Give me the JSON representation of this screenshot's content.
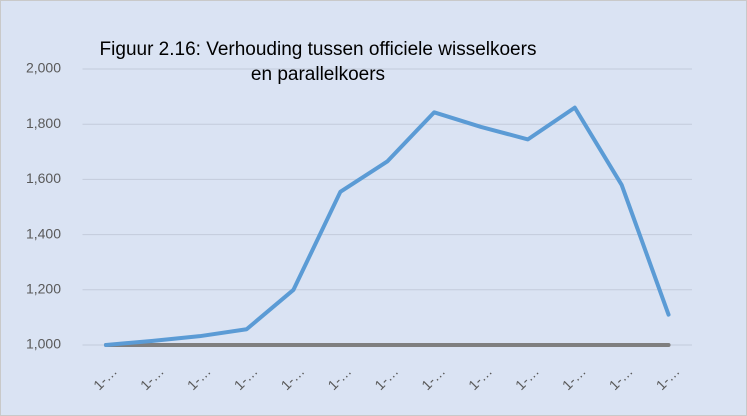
{
  "chart_data": {
    "type": "line",
    "title": "Figuur 2.16: Verhouding tussen officiele wisselkoers en parallelkoers",
    "categories": [
      "1-…",
      "1-…",
      "1-…",
      "1-…",
      "1-…",
      "1-…",
      "1-…",
      "1-…",
      "1-…",
      "1-…",
      "1-…",
      "1-…",
      "1-…"
    ],
    "series": [
      {
        "color": "#5b9bd5",
        "values": [
          1000,
          1015,
          1032,
          1057,
          1200,
          1555,
          1665,
          1843,
          1790,
          1745,
          1860,
          1580,
          1110
        ]
      },
      {
        "color": "#7f7f7f",
        "values": [
          1000,
          1000,
          1000,
          1000,
          1000,
          1000,
          1000,
          1000,
          1000,
          1000,
          1000,
          1000,
          1000
        ]
      }
    ],
    "ylim": [
      1000,
      2000
    ],
    "yticks": [
      {
        "value": 1000,
        "label": "1,000"
      },
      {
        "value": 1200,
        "label": "1,200"
      },
      {
        "value": 1400,
        "label": "1,400"
      },
      {
        "value": 1600,
        "label": "1,600"
      },
      {
        "value": 1800,
        "label": "1,800"
      },
      {
        "value": 2000,
        "label": "2,000"
      }
    ],
    "grid": true
  }
}
